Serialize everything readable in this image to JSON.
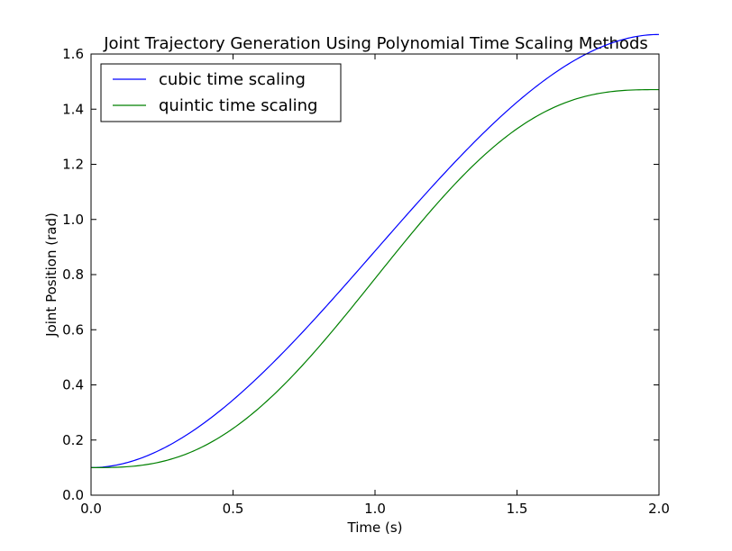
{
  "chart_data": {
    "type": "line",
    "title": "Joint Trajectory Generation Using Polynomial Time Scaling Methods",
    "xlabel": "Time (s)",
    "ylabel": "Joint Position (rad)",
    "xlim": [
      0.0,
      2.0
    ],
    "ylim": [
      0.0,
      1.6
    ],
    "xticks": [
      "0.0",
      "0.5",
      "1.0",
      "1.5",
      "2.0"
    ],
    "yticks": [
      "0.0",
      "0.2",
      "0.4",
      "0.6",
      "0.8",
      "1.0",
      "1.2",
      "1.4",
      "1.6"
    ],
    "grid": false,
    "legend_position": "top-left",
    "x": [
      0.0,
      0.1,
      0.2,
      0.3,
      0.4,
      0.5,
      0.6,
      0.7,
      0.8,
      0.9,
      1.0,
      1.1,
      1.2,
      1.3,
      1.4,
      1.5,
      1.6,
      1.7,
      1.8,
      1.9,
      2.0
    ],
    "series": [
      {
        "name": "cubic time scaling",
        "color": "#0000ff",
        "values": [
          0.1,
          0.1108,
          0.1419,
          0.1916,
          0.2576,
          0.3381,
          0.4309,
          0.5341,
          0.6456,
          0.7634,
          0.8854,
          1.0074,
          1.1252,
          1.2367,
          1.3399,
          1.4327,
          1.5132,
          1.5792,
          1.6289,
          1.66,
          1.6708
        ]
      },
      {
        "name": "quintic time scaling",
        "color": "#008000",
        "values": [
          0.1,
          0.1018,
          0.1128,
          0.1375,
          0.18,
          0.242,
          0.3233,
          0.4222,
          0.5358,
          0.6584,
          0.7854,
          0.9124,
          1.035,
          1.1486,
          1.2475,
          1.3288,
          1.3908,
          1.4333,
          1.458,
          1.469,
          1.4708
        ]
      }
    ]
  }
}
